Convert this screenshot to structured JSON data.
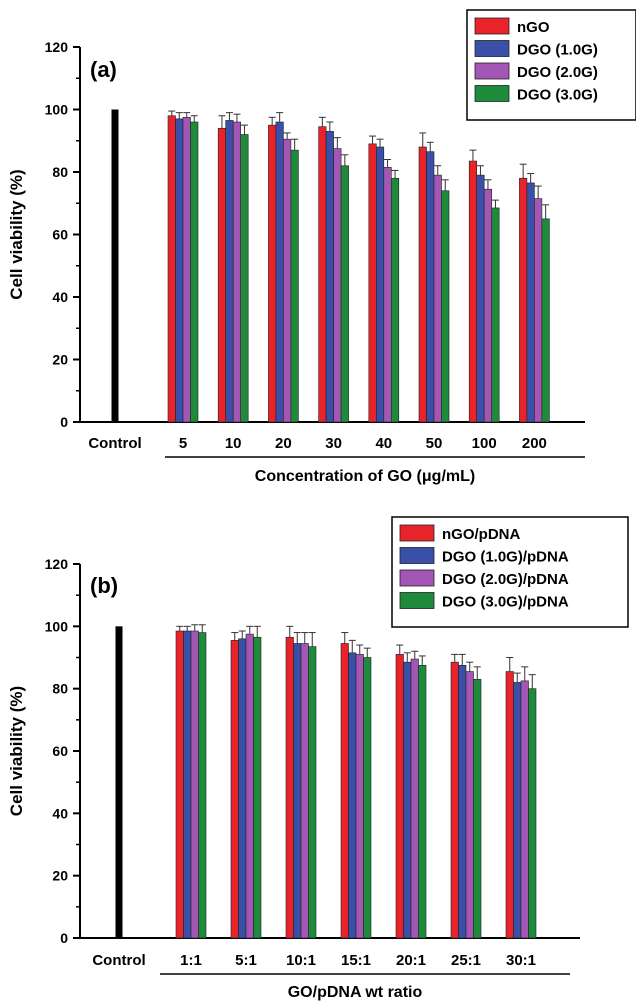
{
  "chart_data": [
    {
      "type": "bar",
      "panel_label": "(a)",
      "control": {
        "label": "Control",
        "value": 100
      },
      "categories": [
        "5",
        "10",
        "20",
        "30",
        "40",
        "50",
        "100",
        "200"
      ],
      "xlabel": "Concentration of GO (μg/mL)",
      "ylabel": "Cell viability (%)",
      "ylim": [
        0,
        120
      ],
      "yticks": [
        0,
        20,
        40,
        60,
        80,
        100,
        120
      ],
      "legend_position": "top-right",
      "grid": false,
      "series": [
        {
          "name": "nGO",
          "color": "#e8242a",
          "values": [
            98,
            94,
            95,
            94.5,
            89,
            88,
            83.5,
            78
          ],
          "errors": [
            1.5,
            4,
            2.5,
            3,
            2.5,
            4.5,
            3.5,
            4.5
          ]
        },
        {
          "name": "DGO (1.0G)",
          "color": "#3a4fa8",
          "values": [
            97,
            96.5,
            96,
            93,
            88,
            86.5,
            79,
            76.5
          ],
          "errors": [
            2,
            2.5,
            3,
            3,
            2.5,
            3,
            3,
            3
          ]
        },
        {
          "name": "DGO (2.0G)",
          "color": "#a356b3",
          "values": [
            97.5,
            96,
            90.5,
            87.5,
            81.5,
            79,
            74.5,
            71.5
          ],
          "errors": [
            1.5,
            2.5,
            2,
            3.5,
            2.5,
            3,
            3,
            4
          ]
        },
        {
          "name": "DGO (3.0G)",
          "color": "#1d8a3c",
          "values": [
            96,
            92,
            87,
            82,
            78,
            74,
            68.5,
            65
          ],
          "errors": [
            2,
            3,
            3.5,
            3.5,
            2.5,
            3.5,
            2.5,
            4.5
          ]
        }
      ]
    },
    {
      "type": "bar",
      "panel_label": "(b)",
      "control": {
        "label": "Control",
        "value": 100
      },
      "categories": [
        "1:1",
        "5:1",
        "10:1",
        "15:1",
        "20:1",
        "25:1",
        "30:1"
      ],
      "xlabel": "GO/pDNA wt ratio",
      "ylabel": "Cell viability (%)",
      "ylim": [
        0,
        120
      ],
      "yticks": [
        0,
        20,
        40,
        60,
        80,
        100,
        120
      ],
      "legend_position": "top-right",
      "grid": false,
      "series": [
        {
          "name": "nGO/pDNA",
          "color": "#e8242a",
          "values": [
            98.5,
            95.5,
            96.5,
            94.5,
            91,
            88.5,
            85.5
          ],
          "errors": [
            1.5,
            2.5,
            3.5,
            3.5,
            3,
            2.5,
            4.5
          ]
        },
        {
          "name": "DGO (1.0G)/pDNA",
          "color": "#3a4fa8",
          "values": [
            98.5,
            96,
            94.5,
            91.5,
            88.5,
            87.5,
            82
          ],
          "errors": [
            1.5,
            2.5,
            3.5,
            4,
            3,
            3.5,
            3
          ]
        },
        {
          "name": "DGO (2.0G)/pDNA",
          "color": "#a356b3",
          "values": [
            98.5,
            97.5,
            94.5,
            91,
            89.5,
            85.5,
            82.5
          ],
          "errors": [
            2,
            2.5,
            3.5,
            3,
            2.5,
            3,
            4.5
          ]
        },
        {
          "name": "DGO (3.0G)/pDNA",
          "color": "#1d8a3c",
          "values": [
            98,
            96.5,
            93.5,
            90,
            87.5,
            83,
            80
          ],
          "errors": [
            2.5,
            3.5,
            4.5,
            3,
            3,
            4,
            4.5
          ]
        }
      ]
    }
  ]
}
